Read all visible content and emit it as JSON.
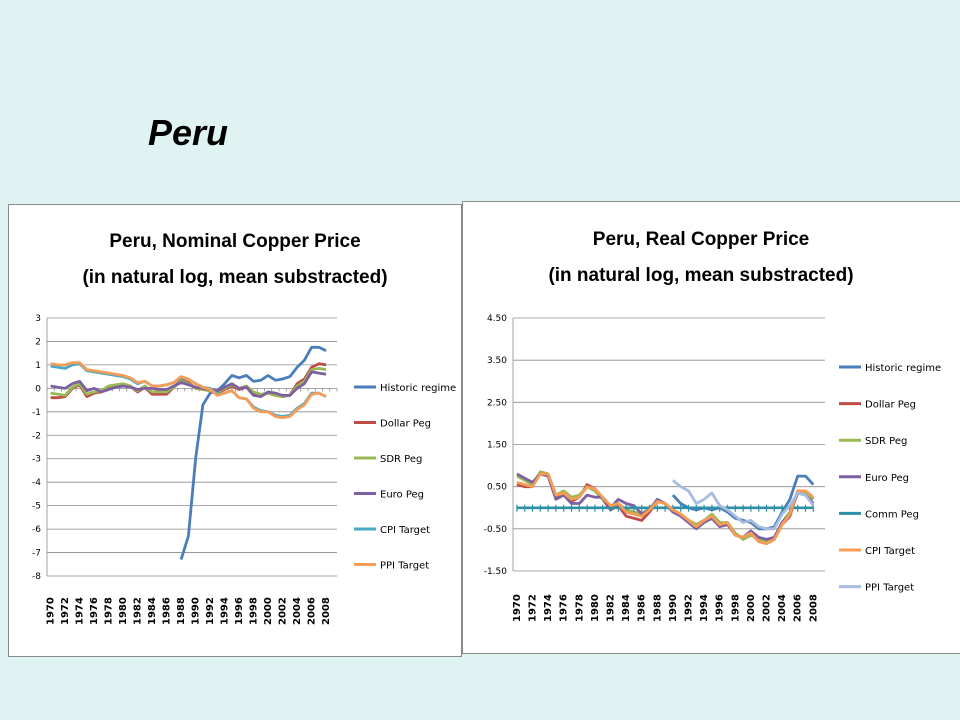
{
  "page": {
    "title": "Peru"
  },
  "chart_data": [
    {
      "type": "line",
      "title": "Peru, Nominal Copper Price",
      "subtitle": "(in natural log, mean substracted)",
      "xlabel": "",
      "ylabel": "",
      "ylim": [
        -8,
        3
      ],
      "yticks": [
        3,
        2,
        1,
        0,
        -1,
        -2,
        -3,
        -4,
        -5,
        -6,
        -7,
        -8
      ],
      "ytick_labels": [
        "3",
        "2",
        "1",
        "0",
        "-1",
        "-2",
        "-3",
        "-4",
        "-5",
        "-6",
        "-7",
        "-8"
      ],
      "x_start": 1970,
      "x_end": 2009,
      "xtick_labels": [
        "1970",
        "1972",
        "1974",
        "1976",
        "1978",
        "1980",
        "1982",
        "1984",
        "1986",
        "1988",
        "1990",
        "1992",
        "1994",
        "1996",
        "1998",
        "2000",
        "2002",
        "2004",
        "2006",
        "2008"
      ],
      "grid": "horizontal",
      "legend_position": "right",
      "series": [
        {
          "name": "Historic regime",
          "color": "#4a7ebb",
          "x_start": 1988,
          "values": [
            -7.3,
            -6.3,
            -3.0,
            -0.7,
            -0.2,
            -0.1,
            0.2,
            0.55,
            0.45,
            0.55,
            0.3,
            0.35,
            0.55,
            0.35,
            0.4,
            0.5,
            0.9,
            1.2,
            1.75,
            1.75,
            1.6
          ]
        },
        {
          "name": "Dollar Peg",
          "color": "#be4b48",
          "x_start": 1970,
          "values": [
            -0.4,
            -0.4,
            -0.35,
            0.0,
            0.15,
            -0.35,
            -0.2,
            -0.15,
            0.05,
            0.1,
            0.15,
            0.1,
            -0.15,
            0.05,
            -0.25,
            -0.25,
            -0.25,
            0.05,
            0.35,
            0.25,
            0.0,
            -0.05,
            -0.1,
            -0.2,
            -0.05,
            0.1,
            -0.05,
            0.05,
            -0.2,
            -0.3,
            -0.2,
            -0.3,
            -0.35,
            -0.3,
            0.2,
            0.4,
            0.9,
            1.05,
            1.0
          ]
        },
        {
          "name": "SDR Peg",
          "color": "#98b954",
          "x_start": 1970,
          "values": [
            -0.2,
            -0.25,
            -0.3,
            0.05,
            0.2,
            -0.25,
            -0.15,
            -0.1,
            0.1,
            0.15,
            0.2,
            0.1,
            -0.1,
            0.1,
            -0.15,
            -0.15,
            -0.15,
            0.05,
            0.3,
            0.2,
            0.0,
            -0.05,
            -0.1,
            -0.15,
            0.0,
            0.15,
            0.0,
            0.1,
            -0.15,
            -0.25,
            -0.2,
            -0.3,
            -0.35,
            -0.3,
            0.1,
            0.3,
            0.8,
            0.85,
            0.8
          ]
        },
        {
          "name": "Euro Peg",
          "color": "#7d60a0",
          "x_start": 1970,
          "values": [
            0.1,
            0.05,
            0.0,
            0.2,
            0.3,
            -0.1,
            0.0,
            -0.15,
            -0.05,
            0.05,
            0.1,
            0.05,
            -0.05,
            0.0,
            0.0,
            -0.05,
            -0.05,
            0.1,
            0.25,
            0.15,
            0.05,
            0.0,
            -0.05,
            -0.1,
            0.05,
            0.2,
            0.0,
            0.05,
            -0.3,
            -0.35,
            -0.15,
            -0.2,
            -0.3,
            -0.3,
            0.0,
            0.2,
            0.7,
            0.65,
            0.6
          ]
        },
        {
          "name": "CPI Target",
          "color": "#46aac5",
          "x_start": 1970,
          "values": [
            0.95,
            0.9,
            0.85,
            1.0,
            1.05,
            0.75,
            0.7,
            0.65,
            0.6,
            0.55,
            0.5,
            0.4,
            0.2,
            0.3,
            0.1,
            0.1,
            0.15,
            0.25,
            0.45,
            0.4,
            0.2,
            0.05,
            0.0,
            -0.25,
            -0.2,
            -0.1,
            -0.4,
            -0.45,
            -0.8,
            -0.95,
            -1.0,
            -1.15,
            -1.2,
            -1.15,
            -0.85,
            -0.65,
            -0.2,
            -0.2,
            -0.35
          ]
        },
        {
          "name": "PPI Target",
          "color": "#f59d56",
          "x_start": 1970,
          "values": [
            1.05,
            1.0,
            1.0,
            1.1,
            1.1,
            0.8,
            0.75,
            0.7,
            0.65,
            0.6,
            0.55,
            0.45,
            0.25,
            0.3,
            0.1,
            0.1,
            0.15,
            0.25,
            0.5,
            0.4,
            0.2,
            0.05,
            -0.05,
            -0.3,
            -0.2,
            -0.1,
            -0.4,
            -0.45,
            -0.85,
            -1.0,
            -1.0,
            -1.2,
            -1.25,
            -1.2,
            -0.9,
            -0.7,
            -0.25,
            -0.2,
            -0.35
          ]
        }
      ]
    },
    {
      "type": "line",
      "title": "Peru, Real Copper Price",
      "subtitle": "(in natural log, mean substracted)",
      "xlabel": "",
      "ylabel": "",
      "ylim": [
        -1.5,
        4.5
      ],
      "yticks": [
        4.5,
        3.5,
        2.5,
        1.5,
        0.5,
        -0.5,
        -1.5
      ],
      "ytick_labels": [
        "4.50",
        "3.50",
        "2.50",
        "1.50",
        "0.50",
        "-0.50",
        "-1.50"
      ],
      "x_start": 1970,
      "x_end": 2009,
      "xtick_labels": [
        "1970",
        "1972",
        "1974",
        "1976",
        "1978",
        "1980",
        "1982",
        "1984",
        "1986",
        "1988",
        "1990",
        "1992",
        "1994",
        "1996",
        "1998",
        "2000",
        "2002",
        "2004",
        "2006",
        "2008"
      ],
      "grid": "horizontal",
      "legend_position": "right",
      "series": [
        {
          "name": "Historic regime",
          "color": "#4a7ebb",
          "x_start": 1990,
          "values": [
            0.3,
            0.1,
            0.0,
            -0.05,
            0.0,
            -0.05,
            0.0,
            -0.1,
            -0.25,
            -0.3,
            -0.35,
            -0.5,
            -0.5,
            -0.45,
            -0.1,
            0.2,
            0.75,
            0.75,
            0.55
          ]
        },
        {
          "name": "Dollar Peg",
          "color": "#be4b48",
          "x_start": 1970,
          "values": [
            0.55,
            0.5,
            0.5,
            0.85,
            0.8,
            0.25,
            0.35,
            0.15,
            0.25,
            0.55,
            0.45,
            0.2,
            -0.05,
            0.05,
            -0.2,
            -0.25,
            -0.3,
            -0.1,
            0.15,
            0.1,
            -0.05,
            -0.15,
            -0.3,
            -0.4,
            -0.3,
            -0.2,
            -0.4,
            -0.35,
            -0.65,
            -0.7,
            -0.6,
            -0.8,
            -0.85,
            -0.75,
            -0.4,
            -0.2,
            0.4,
            0.4,
            0.2
          ]
        },
        {
          "name": "SDR Peg",
          "color": "#98b954",
          "x_start": 1970,
          "values": [
            0.75,
            0.65,
            0.55,
            0.85,
            0.8,
            0.3,
            0.4,
            0.25,
            0.3,
            0.5,
            0.4,
            0.2,
            0.05,
            0.1,
            -0.05,
            -0.1,
            -0.15,
            0.0,
            0.15,
            0.1,
            -0.05,
            -0.15,
            -0.3,
            -0.4,
            -0.3,
            -0.15,
            -0.35,
            -0.35,
            -0.6,
            -0.75,
            -0.65,
            -0.75,
            -0.8,
            -0.7,
            -0.35,
            -0.1,
            0.35,
            0.35,
            0.2
          ]
        },
        {
          "name": "Euro Peg",
          "color": "#7d60a0",
          "x_start": 1970,
          "values": [
            0.8,
            0.7,
            0.6,
            0.8,
            0.75,
            0.2,
            0.3,
            0.1,
            0.1,
            0.3,
            0.25,
            0.25,
            0.0,
            0.2,
            0.1,
            0.05,
            -0.15,
            -0.05,
            0.2,
            0.1,
            -0.1,
            -0.2,
            -0.35,
            -0.5,
            -0.35,
            -0.25,
            -0.45,
            -0.4,
            -0.65,
            -0.7,
            -0.55,
            -0.7,
            -0.75,
            -0.7,
            -0.35,
            -0.15,
            0.35,
            0.3,
            0.1
          ]
        },
        {
          "name": "Comm Peg",
          "color": "#2e8fa8",
          "x_start": 1970,
          "values": [
            0.0,
            0.0,
            0.0,
            0.0,
            0.0,
            0.0,
            0.0,
            0.0,
            0.0,
            0.0,
            0.0,
            0.0,
            0.0,
            0.0,
            0.0,
            0.0,
            0.0,
            0.0,
            0.0,
            0.0,
            0.0,
            0.0,
            0.0,
            0.0,
            0.0,
            0.0,
            0.0,
            0.0,
            0.0,
            0.0,
            0.0,
            0.0,
            0.0,
            0.0,
            0.0,
            0.0,
            0.0,
            0.0,
            0.0
          ]
        },
        {
          "name": "CPI Target",
          "color": "#f59d56",
          "x_start": 1970,
          "values": [
            0.6,
            0.55,
            0.5,
            0.8,
            0.8,
            0.3,
            0.35,
            0.2,
            0.25,
            0.5,
            0.45,
            0.25,
            0.05,
            0.1,
            -0.1,
            -0.15,
            -0.2,
            -0.05,
            0.15,
            0.1,
            -0.05,
            -0.15,
            -0.3,
            -0.45,
            -0.3,
            -0.2,
            -0.4,
            -0.35,
            -0.65,
            -0.7,
            -0.6,
            -0.8,
            -0.85,
            -0.75,
            -0.4,
            -0.15,
            0.4,
            0.4,
            0.25
          ]
        },
        {
          "name": "PPI Target",
          "color": "#a6bde0",
          "x_start": 1990,
          "values": [
            0.65,
            0.5,
            0.4,
            0.1,
            0.2,
            0.35,
            0.05,
            -0.05,
            -0.2,
            -0.35,
            -0.3,
            -0.45,
            -0.5,
            -0.5,
            -0.15,
            0.05,
            0.35,
            0.3,
            0.05
          ]
        }
      ]
    }
  ]
}
